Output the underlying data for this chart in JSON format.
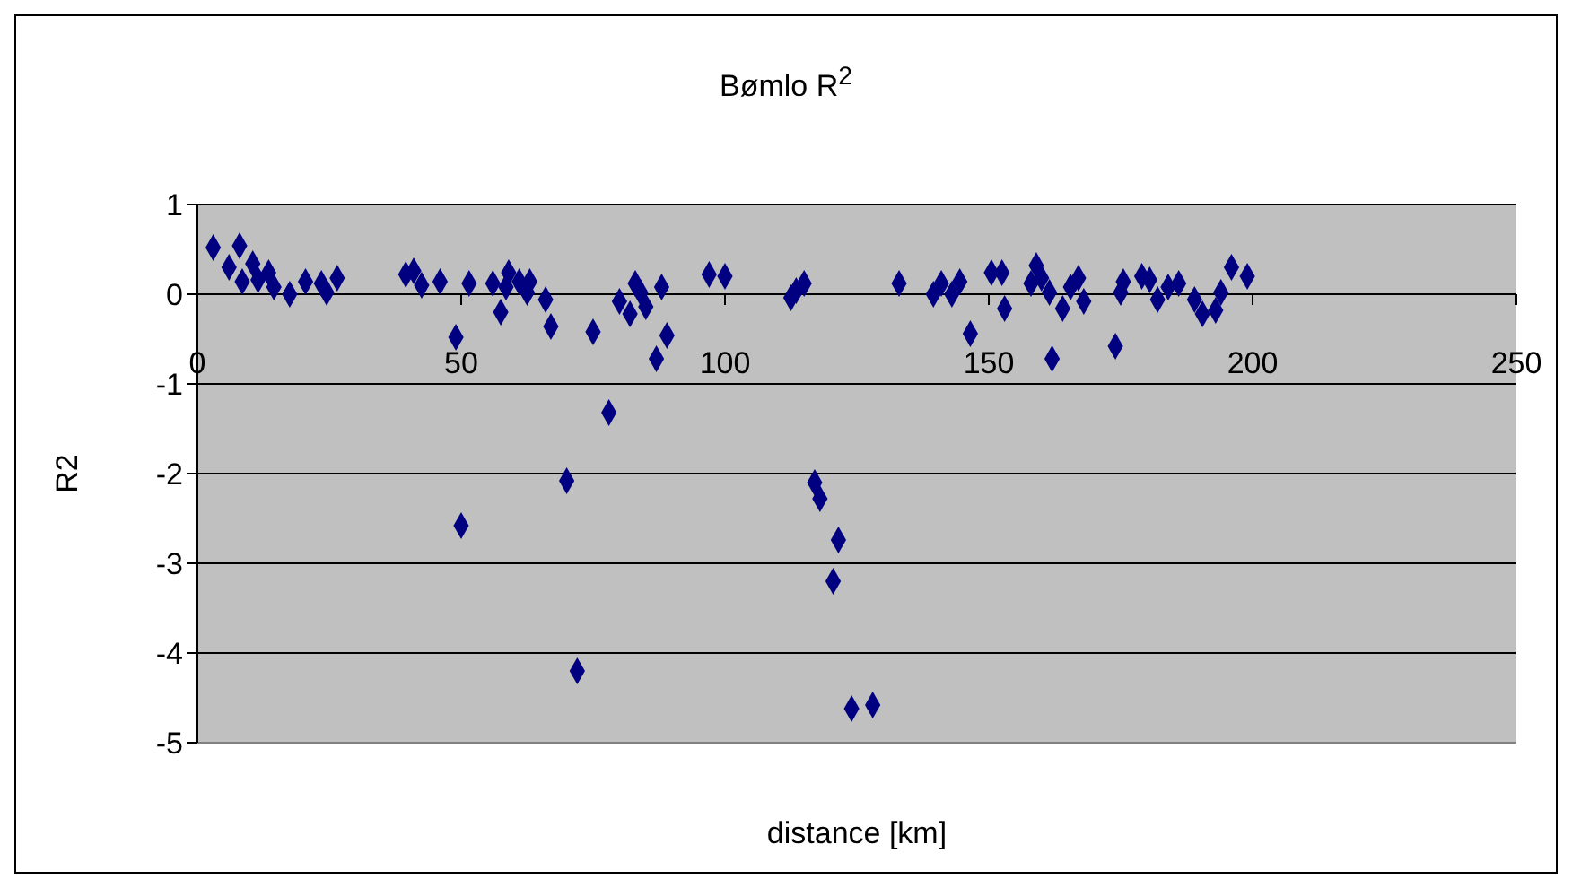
{
  "chart_data": {
    "type": "scatter",
    "title": "Bømlo R$^{2}$",
    "xlabel": "distance [km]",
    "ylabel": "R2",
    "x": [
      3,
      6,
      8,
      8.5,
      10.5,
      11.5,
      13.5,
      14.5,
      17.5,
      20.5,
      23.5,
      24.5,
      26.5,
      39.5,
      41,
      42.5,
      46,
      49,
      50,
      51.5,
      56,
      57.5,
      58.5,
      59,
      61,
      62.5,
      63,
      66,
      67,
      70,
      72,
      75,
      78,
      80,
      82,
      83,
      84,
      85,
      87,
      88,
      89,
      97,
      100,
      112.5,
      113.5,
      115,
      117,
      118,
      120.5,
      121.5,
      124,
      128,
      133,
      139.5,
      141,
      143,
      144.5,
      146.5,
      150.5,
      152.5,
      153,
      158,
      159,
      160,
      161.5,
      162,
      164,
      165.5,
      167,
      168,
      174,
      175,
      175.5,
      179,
      180.5,
      182,
      184,
      186,
      189,
      190.5,
      193,
      194,
      196,
      199
    ],
    "series": [
      {
        "color": "#000080",
        "values": [
          0.52,
          0.3,
          0.54,
          0.14,
          0.34,
          0.16,
          0.24,
          0.08,
          0,
          0.14,
          0.12,
          0.02,
          0.18,
          0.22,
          0.26,
          0.1,
          0.14,
          -0.48,
          -2.58,
          0.12,
          0.12,
          -0.2,
          0.08,
          0.24,
          0.14,
          0.02,
          0.14,
          -0.06,
          -0.36,
          -2.08,
          -4.2,
          -0.42,
          -1.32,
          -0.08,
          -0.22,
          0.12,
          0.02,
          -0.14,
          -0.72,
          0.08,
          -0.46,
          0.22,
          0.2,
          -0.04,
          0.04,
          0.12,
          -2.1,
          -2.28,
          -3.2,
          -2.74,
          -4.62,
          -4.58,
          0.12,
          0,
          0.12,
          0,
          0.14,
          -0.44,
          0.24,
          0.24,
          -0.16,
          0.12,
          0.32,
          0.18,
          0.02,
          -0.72,
          -0.16,
          0.08,
          0.18,
          -0.08,
          -0.58,
          0.02,
          0.14,
          0.2,
          0.16,
          -0.06,
          0.08,
          0.12,
          -0.06,
          -0.22,
          -0.18,
          0.02,
          0.3,
          0.2
        ]
      }
    ],
    "xlim": [
      0,
      250
    ],
    "xticks": [
      0,
      50,
      100,
      150,
      200,
      250
    ],
    "ylim": [
      -5,
      1
    ],
    "yticks": [
      -5,
      -4,
      -3,
      -2,
      -1,
      0,
      1
    ],
    "grid": "y",
    "marker": "diamond"
  }
}
